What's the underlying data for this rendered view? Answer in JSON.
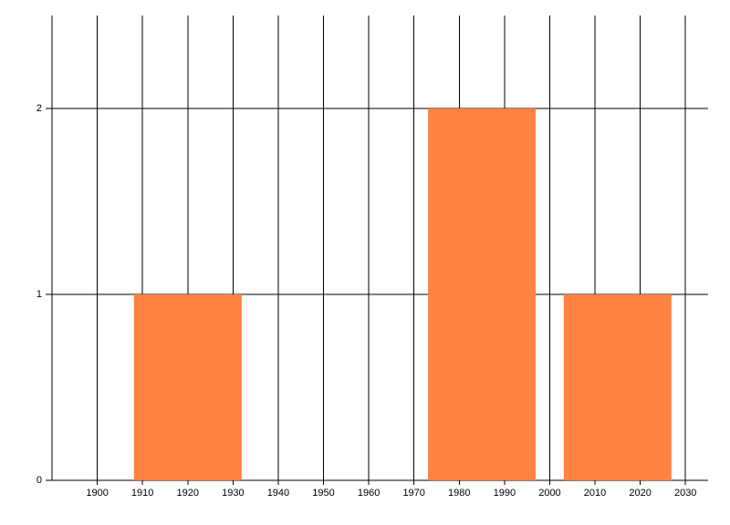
{
  "chart_data": {
    "type": "bar",
    "x": [
      1920,
      1985,
      2015
    ],
    "values": [
      1,
      2,
      1
    ],
    "color": "#ff8243",
    "xlim": [
      1890,
      2035
    ],
    "xticks": [
      1900,
      1910,
      1920,
      1930,
      1940,
      1950,
      1960,
      1970,
      1980,
      1990,
      2000,
      2010,
      2020,
      2030
    ],
    "ylim": [
      0,
      2.5
    ],
    "yticks": [
      0,
      1,
      2
    ],
    "grid": true
  }
}
